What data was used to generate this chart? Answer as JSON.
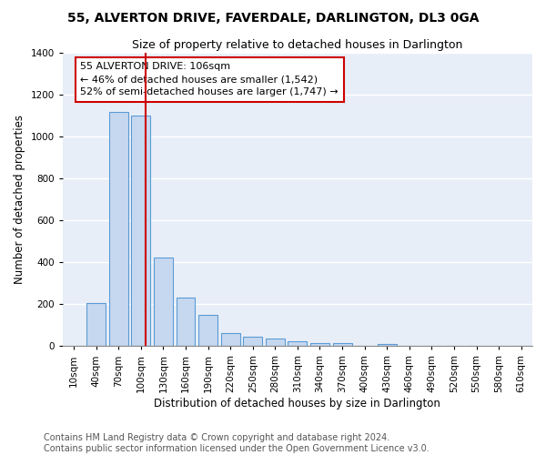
{
  "title": "55, ALVERTON DRIVE, FAVERDALE, DARLINGTON, DL3 0GA",
  "subtitle": "Size of property relative to detached houses in Darlington",
  "xlabel": "Distribution of detached houses by size in Darlington",
  "ylabel": "Number of detached properties",
  "footer_line1": "Contains HM Land Registry data © Crown copyright and database right 2024.",
  "footer_line2": "Contains public sector information licensed under the Open Government Licence v3.0.",
  "bar_labels": [
    "10sqm",
    "40sqm",
    "70sqm",
    "100sqm",
    "130sqm",
    "160sqm",
    "190sqm",
    "220sqm",
    "250sqm",
    "280sqm",
    "310sqm",
    "340sqm",
    "370sqm",
    "400sqm",
    "430sqm",
    "460sqm",
    "490sqm",
    "520sqm",
    "550sqm",
    "580sqm",
    "610sqm"
  ],
  "bar_values": [
    0,
    207,
    1120,
    1100,
    425,
    230,
    148,
    62,
    45,
    38,
    22,
    14,
    13,
    0,
    12,
    0,
    0,
    0,
    0,
    0,
    0
  ],
  "bar_color": "#c5d8f0",
  "bar_edge_color": "#5b9bd5",
  "bg_color": "#e8eef7",
  "annotation_text": "55 ALVERTON DRIVE: 106sqm\n← 46% of detached houses are smaller (1,542)\n52% of semi-detached houses are larger (1,747) →",
  "vline_color": "#cc0000",
  "annotation_box_color": "#cc0000",
  "ylim": [
    0,
    1400
  ],
  "yticks": [
    0,
    200,
    400,
    600,
    800,
    1000,
    1200,
    1400
  ],
  "grid_color": "#ffffff",
  "title_fontsize": 10,
  "subtitle_fontsize": 9,
  "axis_label_fontsize": 8.5,
  "tick_fontsize": 7.5,
  "footer_fontsize": 7,
  "ann_fontsize": 8
}
